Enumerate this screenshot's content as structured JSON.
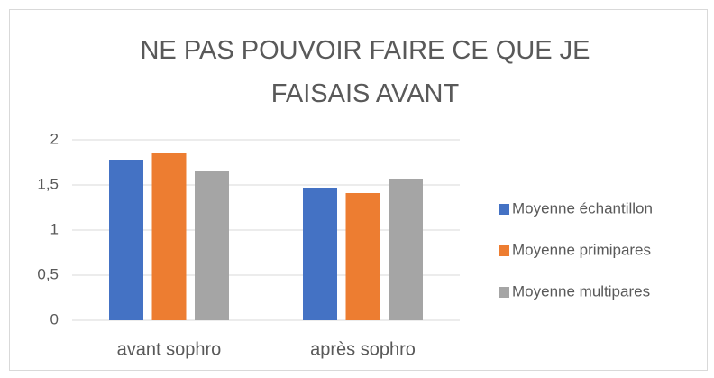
{
  "chart_data": {
    "type": "bar",
    "title": "NE PAS POUVOIR FAIRE CE QUE JE FAISAIS AVANT",
    "categories": [
      "avant sophro",
      "après sophro"
    ],
    "series": [
      {
        "name": "Moyenne échantillon",
        "color": "#4472c4",
        "values": [
          1.78,
          1.47
        ]
      },
      {
        "name": "Moyenne primipares",
        "color": "#ed7d31",
        "values": [
          1.85,
          1.41
        ]
      },
      {
        "name": "Moyenne multipares",
        "color": "#a5a5a5",
        "values": [
          1.66,
          1.57
        ]
      }
    ],
    "ylim": [
      0,
      2
    ],
    "yticks": [
      0,
      {
        "value": 0.5,
        "label": "0,5"
      },
      1,
      {
        "value": 1.5,
        "label": "1,5"
      },
      2
    ],
    "grid": true,
    "legend": "right"
  }
}
